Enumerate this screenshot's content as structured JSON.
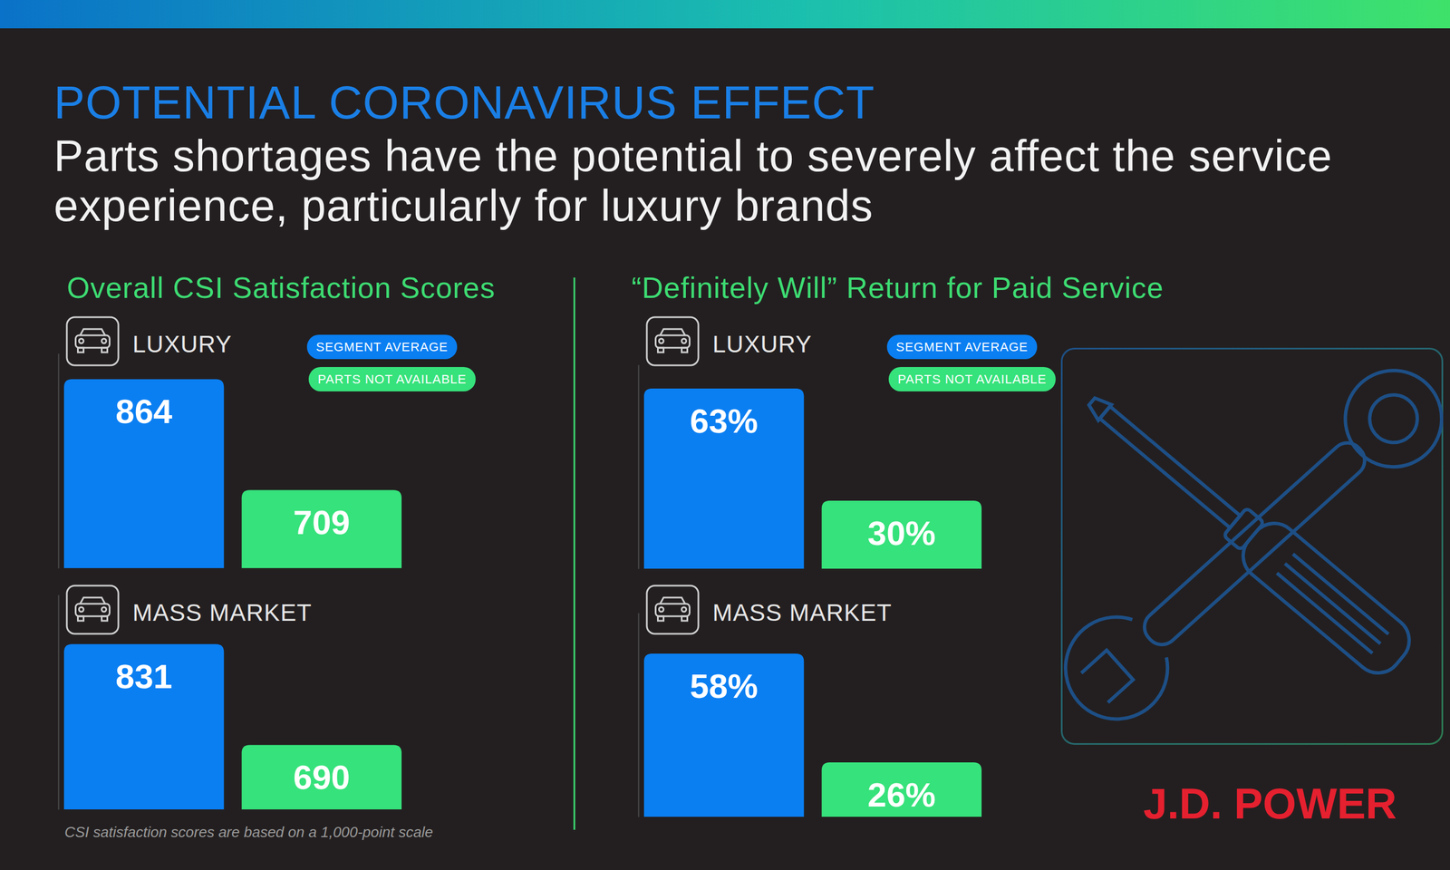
{
  "header": {
    "kicker": "POTENTIAL CORONAVIRUS EFFECT",
    "title": "Parts shortages have the potential to severely affect the service experience, particularly for luxury brands"
  },
  "panel_titles": [
    "Overall CSI Satisfaction Scores",
    "“Definitely Will” Return for Paid Service"
  ],
  "footnote": "CSI satisfaction scores are based on a 1,000-point scale",
  "brand": "J.D. POWER",
  "chart_data": [
    {
      "type": "bar",
      "title": "LUXURY",
      "categories": [
        null
      ],
      "series": [
        {
          "name": "SEGMENT AVERAGE",
          "color": "#0a7ff2",
          "values": [
            864
          ]
        },
        {
          "name": "PARTS NOT AVAILABLE",
          "color": "#36e27b",
          "values": [
            709
          ]
        }
      ],
      "ylim": [
        600,
        900
      ],
      "data_labels": true,
      "tick_labels": false,
      "legend": "top-right"
    },
    {
      "type": "bar",
      "title": "MASS MARKET",
      "categories": [
        null
      ],
      "series": [
        {
          "color": "#0a7ff2",
          "values": [
            831
          ]
        },
        {
          "color": "#36e27b",
          "values": [
            690
          ]
        }
      ],
      "ylim": [
        600,
        900
      ],
      "data_labels": true,
      "tick_labels": false
    },
    {
      "type": "bar",
      "title": "LUXURY",
      "categories": [
        null
      ],
      "series": [
        {
          "name": "SEGMENT AVERAGE",
          "color": "#0a7ff2",
          "values": [
            63
          ],
          "value_labels": [
            "63%"
          ]
        },
        {
          "name": "PARTS NOT AVAILABLE",
          "color": "#36e27b",
          "values": [
            30
          ],
          "value_labels": [
            "30%"
          ]
        }
      ],
      "ylim": [
        10,
        70
      ],
      "data_labels": true,
      "tick_labels": false,
      "legend": "top-right"
    },
    {
      "type": "bar",
      "title": "MASS MARKET",
      "categories": [
        null
      ],
      "series": [
        {
          "color": "#0a7ff2",
          "values": [
            58
          ],
          "value_labels": [
            "58%"
          ]
        },
        {
          "color": "#36e27b",
          "values": [
            26
          ],
          "value_labels": [
            "26%"
          ]
        }
      ],
      "ylim": [
        10,
        70
      ],
      "data_labels": true,
      "tick_labels": false
    }
  ]
}
